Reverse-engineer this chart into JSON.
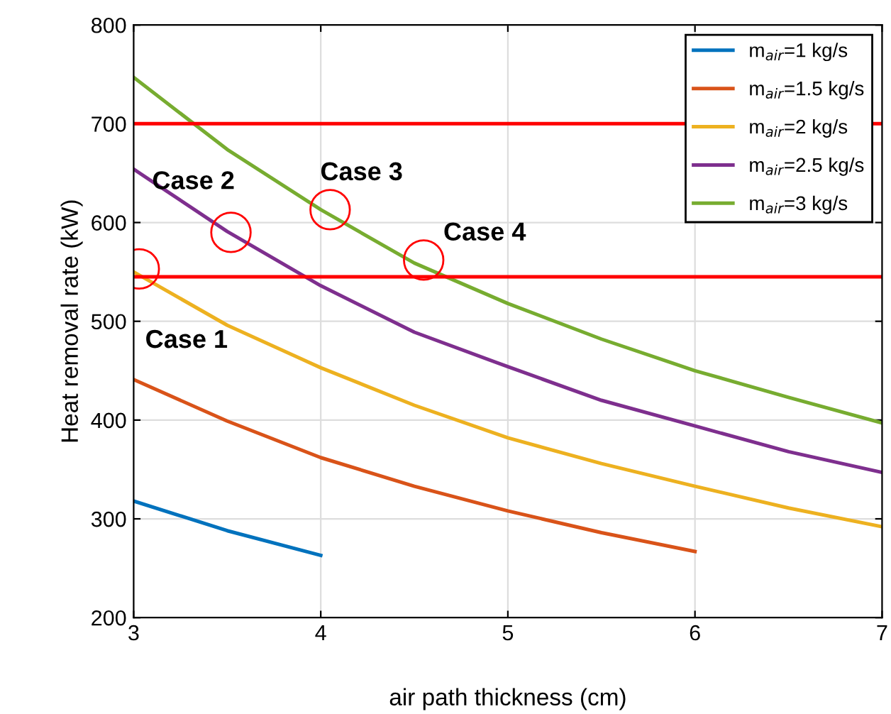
{
  "chart_data": {
    "type": "line",
    "xlabel": "air path thickness (cm)",
    "ylabel": "Heat removal rate (kW)",
    "x": [
      3,
      3.5,
      4,
      4.5,
      5,
      5.5,
      6,
      6.5,
      7
    ],
    "series": [
      {
        "name": "m$_{air}$=1 kg/s",
        "color": "#0072bd",
        "values": [
          318,
          288,
          263,
          null,
          null,
          null,
          null,
          null,
          null
        ]
      },
      {
        "name": "m$_{air}$=1.5 kg/s",
        "color": "#d95319",
        "values": [
          441,
          399,
          362,
          333,
          308,
          286,
          267,
          null,
          null
        ]
      },
      {
        "name": "m$_{air}$=2 kg/s",
        "color": "#edb120",
        "values": [
          550,
          496,
          453,
          415,
          382,
          356,
          333,
          311,
          292
        ]
      },
      {
        "name": "m$_{air}$=2.5 kg/s",
        "color": "#7e2f8e",
        "values": [
          654,
          591,
          536,
          489,
          454,
          420,
          394,
          368,
          347
        ]
      },
      {
        "name": "m$_{air}$=3 kg/s",
        "color": "#77ac30",
        "values": [
          747,
          674,
          613,
          559,
          518,
          482,
          450,
          423,
          397
        ]
      }
    ],
    "xlim": [
      3,
      7
    ],
    "xticks": [
      3,
      4,
      5,
      6,
      7
    ],
    "ylim": [
      200,
      800
    ],
    "yticks": [
      200,
      300,
      400,
      500,
      600,
      700,
      800
    ],
    "ref_lines": [
      {
        "axis": "y",
        "value": 700,
        "color": "#ff0000"
      },
      {
        "axis": "y",
        "value": 545,
        "color": "#ff0000"
      }
    ],
    "annotations": [
      {
        "text": "Case 1",
        "x": 3.03,
        "y": 553
      },
      {
        "text": "Case 2",
        "x": 3.52,
        "y": 590
      },
      {
        "text": "Case 3",
        "x": 4.05,
        "y": 613
      },
      {
        "text": "Case 4",
        "x": 4.55,
        "y": 562
      }
    ],
    "grid": true,
    "legend": "top right",
    "marker": "none",
    "line_style": "solid"
  }
}
